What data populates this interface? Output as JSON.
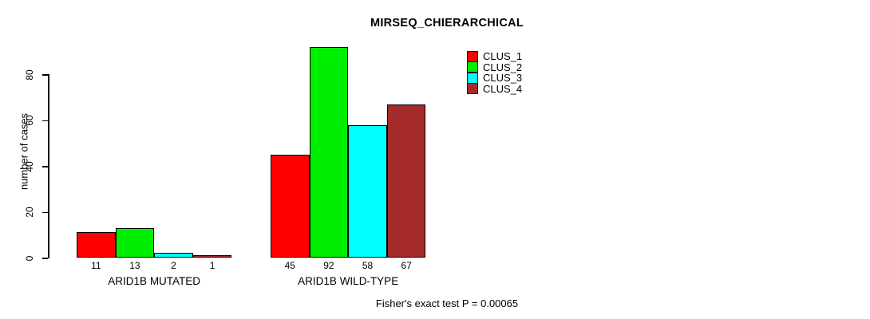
{
  "title": "MIRSEQ_CHIERARCHICAL",
  "ylabel": "number of cases",
  "footer": "Fisher's exact test P = 0.00065",
  "colors": {
    "background": "#ffffff",
    "axis": "#000000",
    "bar_border": "#000000"
  },
  "legend": {
    "position": "top-right-inside",
    "items": [
      {
        "label": "CLUS_1",
        "color": "#FF0000"
      },
      {
        "label": "CLUS_2",
        "color": "#00EE00"
      },
      {
        "label": "CLUS_3",
        "color": "#00FFFF"
      },
      {
        "label": "CLUS_4",
        "color": "#A52A2A"
      }
    ]
  },
  "chart_data": {
    "type": "bar",
    "grouped": true,
    "categories": [
      "ARID1B MUTATED",
      "ARID1B WILD-TYPE"
    ],
    "series": [
      {
        "name": "CLUS_1",
        "color": "#FF0000",
        "values": [
          11,
          45
        ]
      },
      {
        "name": "CLUS_2",
        "color": "#00EE00",
        "values": [
          13,
          92
        ]
      },
      {
        "name": "CLUS_3",
        "color": "#00FFFF",
        "values": [
          2,
          58
        ]
      },
      {
        "name": "CLUS_4",
        "color": "#A52A2A",
        "values": [
          1,
          67
        ]
      }
    ],
    "value_labels_shown": true,
    "title": "MIRSEQ_CHIERARCHICAL",
    "xlabel": "",
    "ylabel": "number of cases",
    "yticks": [
      0,
      20,
      40,
      60,
      80
    ],
    "ylim": [
      0,
      92
    ],
    "grid": false,
    "legend_position": "top-right-inside",
    "annotation": "Fisher's exact test P = 0.00065"
  }
}
